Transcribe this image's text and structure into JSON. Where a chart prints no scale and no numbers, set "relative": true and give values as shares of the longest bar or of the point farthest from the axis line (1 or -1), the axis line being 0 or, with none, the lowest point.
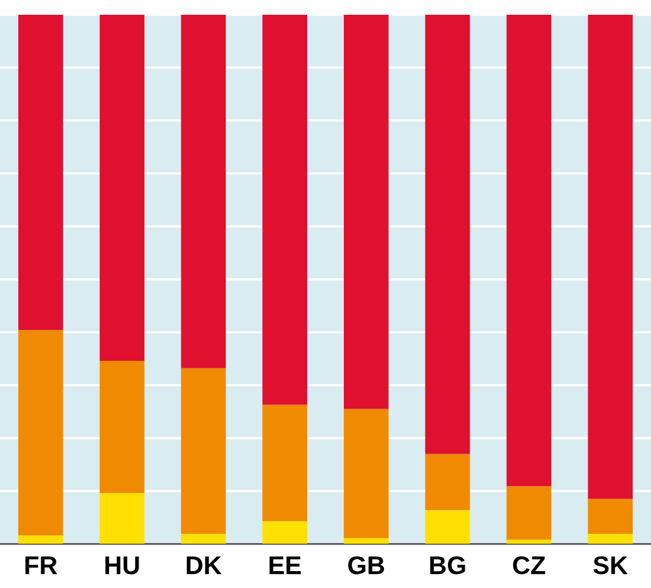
{
  "chart_data": {
    "type": "bar",
    "stacked": true,
    "relative": true,
    "grid": "y",
    "tick_labels": "x",
    "categories": [
      "FR",
      "HU",
      "DK",
      "EE",
      "GB",
      "BG",
      "CZ",
      "SK"
    ],
    "series": [
      {
        "color": "#ffe000",
        "values": [
          0.016,
          0.096,
          0.019,
          0.043,
          0.011,
          0.064,
          0.008,
          0.019
        ]
      },
      {
        "color": "#f08a00",
        "values": [
          0.388,
          0.25,
          0.313,
          0.22,
          0.244,
          0.106,
          0.101,
          0.066
        ]
      },
      {
        "color": "#e0102f",
        "values": [
          0.596,
          0.654,
          0.668,
          0.737,
          0.745,
          0.83,
          0.891,
          0.915
        ]
      }
    ]
  }
}
